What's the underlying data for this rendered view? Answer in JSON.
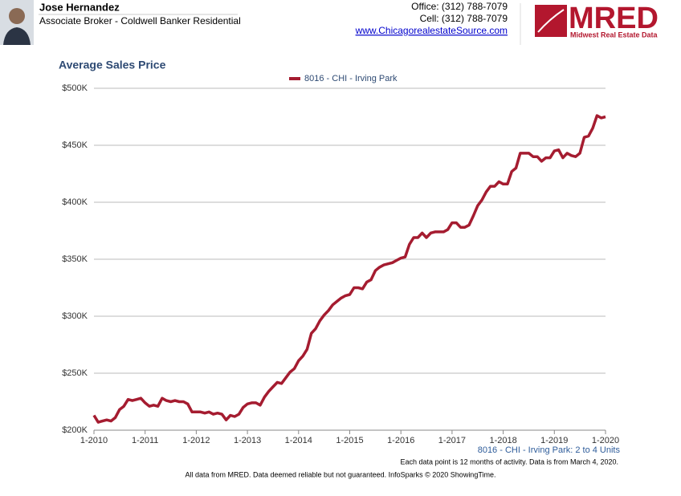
{
  "header": {
    "name": "Jose Hernandez",
    "title": "Associate Broker - Coldwell Banker Residential",
    "office": "Office: (312) 788-7079",
    "cell": "Cell: (312) 788-7079",
    "website": "www.ChicagorealestateSource.com"
  },
  "logo": {
    "name": "MRED",
    "tagline": "Midwest Real Estate Data"
  },
  "chart_data": {
    "type": "line",
    "title": "Average Sales Price",
    "caption": "8016 - CHI - Irving Park: 2 to 4 Units",
    "footnote": "Each data point is 12 months of activity. Data is from March 4, 2020.",
    "disclaimer": "All data from MRED. Data deemed reliable but not guaranteed. InfoSparks © 2020 ShowingTime.",
    "categories": [
      "1-2010",
      null,
      null,
      null,
      null,
      null,
      null,
      null,
      null,
      null,
      null,
      null,
      "1-2011",
      null,
      null,
      null,
      null,
      null,
      null,
      null,
      null,
      null,
      null,
      null,
      "1-2012",
      null,
      null,
      null,
      null,
      null,
      null,
      null,
      null,
      null,
      null,
      null,
      "1-2013",
      null,
      null,
      null,
      null,
      null,
      null,
      null,
      null,
      null,
      null,
      null,
      "1-2014",
      null,
      null,
      null,
      null,
      null,
      null,
      null,
      null,
      null,
      null,
      null,
      "1-2015",
      null,
      null,
      null,
      null,
      null,
      null,
      null,
      null,
      null,
      null,
      null,
      "1-2016",
      null,
      null,
      null,
      null,
      null,
      null,
      null,
      null,
      null,
      null,
      null,
      "1-2017",
      null,
      null,
      null,
      null,
      null,
      null,
      null,
      null,
      null,
      null,
      null,
      "1-2018",
      null,
      null,
      null,
      null,
      null,
      null,
      null,
      null,
      null,
      null,
      null,
      "1-2019",
      null,
      null,
      null,
      null,
      null,
      null,
      null,
      null,
      null,
      null,
      null,
      "1-2020"
    ],
    "series": [
      {
        "name": "8016 - CHI - Irving Park",
        "color": "#a51c30",
        "values": [
          213000,
          207000,
          208000,
          209000,
          208000,
          211000,
          218000,
          221000,
          227000,
          226000,
          227000,
          228000,
          224000,
          221000,
          222000,
          221000,
          228000,
          226000,
          225000,
          226000,
          225000,
          225000,
          223000,
          216000,
          216000,
          216000,
          215000,
          216000,
          214000,
          215000,
          214000,
          209000,
          213000,
          212000,
          214000,
          220000,
          223000,
          224000,
          224000,
          222000,
          229000,
          234000,
          238000,
          242000,
          241000,
          246000,
          251000,
          254000,
          261000,
          265000,
          271000,
          285000,
          289000,
          296000,
          301000,
          305000,
          310000,
          313000,
          316000,
          318000,
          319000,
          325000,
          325000,
          324000,
          330000,
          332000,
          340000,
          343000,
          345000,
          346000,
          347000,
          349000,
          351000,
          352000,
          363000,
          369000,
          369000,
          373000,
          369000,
          373000,
          374000,
          374000,
          374000,
          376000,
          382000,
          382000,
          378000,
          378000,
          380000,
          388000,
          397000,
          402000,
          409000,
          414000,
          414000,
          418000,
          416000,
          416000,
          427000,
          430000,
          443000,
          443000,
          443000,
          440000,
          440000,
          436000,
          439000,
          439000,
          445000,
          446000,
          439000,
          443000,
          441000,
          440000,
          443000,
          457000,
          458000,
          465000,
          476000,
          474000,
          475000
        ]
      }
    ],
    "ylim": [
      200000,
      500000
    ],
    "yticks": [
      {
        "value": 200000,
        "label": "$200K"
      },
      {
        "value": 250000,
        "label": "$250K"
      },
      {
        "value": 300000,
        "label": "$300K"
      },
      {
        "value": 350000,
        "label": "$350K"
      },
      {
        "value": 400000,
        "label": "$400K"
      },
      {
        "value": 450000,
        "label": "$450K"
      },
      {
        "value": 500000,
        "label": "$500K"
      }
    ],
    "grid": true
  }
}
